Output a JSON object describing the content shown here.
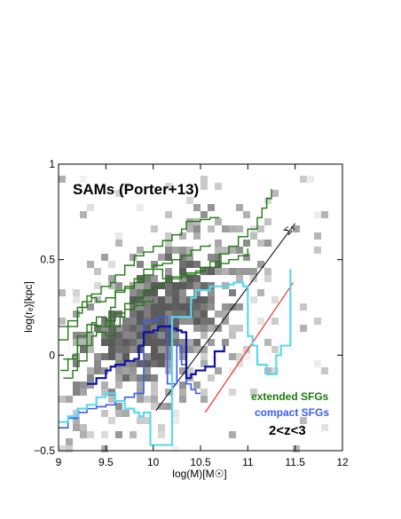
{
  "chart_data": {
    "type": "line",
    "title": "SAMs (Porter+13)",
    "xlabel": "log(M)[M☉]",
    "ylabel": "log(rₑ)[kpc]",
    "xlim": [
      9,
      12
    ],
    "ylim": [
      -0.5,
      1
    ],
    "xticks": [
      "9",
      "9.5",
      "10",
      "10.5",
      "11",
      "11.5",
      "12"
    ],
    "yticks": [
      "−0.5",
      "0",
      "0.5",
      "1"
    ],
    "grid": false,
    "legend_position": "bottom-right",
    "legend": [
      {
        "label": "extended SFGs",
        "color": "#1e7a10"
      },
      {
        "label": "compact SFGs",
        "color": "#3a5cf0"
      }
    ],
    "redshift_label": "2<z<3",
    "reference_lines": [
      {
        "label": "Σ₁",
        "color": "#000000",
        "x": [
          10.03,
          11.5
        ],
        "y": [
          -0.29,
          0.69
        ]
      },
      {
        "label": "",
        "color": "#ff0000",
        "x": [
          10.55,
          11.48
        ],
        "y": [
          -0.3,
          0.38
        ]
      }
    ],
    "series": [
      {
        "group": "extended",
        "color": "#1e7a10",
        "width": 1.4,
        "x": [
          9.0,
          9.1,
          9.2,
          9.3,
          9.35,
          9.45,
          9.55,
          9.6,
          9.7,
          9.8,
          9.9,
          10.0,
          10.1,
          10.2,
          10.3,
          10.35,
          10.45,
          10.5,
          10.6,
          10.7
        ],
        "y": [
          0.15,
          0.18,
          0.25,
          0.28,
          0.32,
          0.36,
          0.38,
          0.42,
          0.47,
          0.52,
          0.54,
          0.57,
          0.6,
          0.63,
          0.66,
          0.7,
          0.7,
          0.71,
          0.72,
          0.72
        ]
      },
      {
        "group": "extended",
        "color": "#1e7a10",
        "width": 1.4,
        "x": [
          9.0,
          9.1,
          9.2,
          9.25,
          9.3,
          9.35,
          9.4,
          9.5,
          9.6,
          9.7,
          9.8,
          9.9,
          10.0,
          10.1,
          10.2,
          10.35,
          10.5,
          10.6,
          10.7,
          10.8,
          10.9,
          11.0,
          11.1,
          11.15,
          11.2,
          11.25
        ],
        "y": [
          0.08,
          0.15,
          0.22,
          0.28,
          0.31,
          0.3,
          0.28,
          0.3,
          0.34,
          0.36,
          0.38,
          0.42,
          0.45,
          0.4,
          0.41,
          0.43,
          0.46,
          0.49,
          0.53,
          0.57,
          0.62,
          0.66,
          0.72,
          0.77,
          0.82,
          0.87
        ]
      },
      {
        "group": "extended",
        "color": "#1e7a10",
        "width": 1.4,
        "x": [
          9.02,
          9.1,
          9.2,
          9.3,
          9.4,
          9.5,
          9.55,
          9.6,
          9.7,
          9.8,
          9.9,
          10.0,
          10.1,
          10.2,
          10.3,
          10.4,
          10.5,
          10.6
        ],
        "y": [
          -0.08,
          -0.02,
          0.1,
          0.16,
          0.2,
          0.15,
          0.25,
          0.33,
          0.35,
          0.4,
          0.45,
          0.47,
          0.48,
          0.5,
          0.52,
          0.55,
          0.57,
          0.58
        ]
      },
      {
        "group": "extended",
        "color": "#1e7a10",
        "width": 1.4,
        "x": [
          9.05,
          9.15,
          9.2,
          9.3,
          9.35,
          9.4,
          9.5,
          9.6,
          9.7,
          9.8,
          9.9,
          10.0,
          10.1,
          10.2,
          10.3,
          10.45,
          10.55,
          10.7,
          10.8,
          10.9,
          11.0
        ],
        "y": [
          -0.02,
          0.0,
          0.05,
          0.12,
          0.17,
          0.15,
          0.18,
          0.22,
          0.27,
          0.3,
          0.34,
          0.36,
          0.38,
          0.4,
          0.42,
          0.44,
          0.46,
          0.48,
          0.5,
          0.52,
          0.56
        ]
      },
      {
        "group": "extended",
        "color": "#1e7a10",
        "width": 1.4,
        "x": [
          9.05,
          9.15,
          9.2,
          9.3,
          9.35,
          9.4,
          9.5,
          9.6,
          9.65,
          9.7,
          9.8,
          9.9,
          10.0
        ],
        "y": [
          -0.12,
          -0.08,
          -0.03,
          0.05,
          0.1,
          0.12,
          0.1,
          0.15,
          0.2,
          0.24,
          0.26,
          0.28,
          0.3
        ]
      },
      {
        "group": "compact",
        "color": "#3a5cf0",
        "width": 1.6,
        "x": [
          9.0,
          9.1,
          9.2,
          9.3,
          9.4,
          9.5,
          9.6,
          9.7,
          9.8,
          9.85,
          9.9,
          10.0,
          10.05,
          10.1,
          10.15,
          10.2,
          10.25,
          10.3,
          10.35,
          10.4,
          10.45,
          10.5
        ],
        "y": [
          -0.38,
          -0.33,
          -0.3,
          -0.28,
          -0.27,
          -0.26,
          -0.24,
          -0.22,
          -0.2,
          -0.2,
          0.18,
          0.18,
          0.2,
          0.2,
          -0.15,
          -0.15,
          0.05,
          -0.05,
          -0.15,
          -0.18,
          -0.2,
          -0.2
        ]
      },
      {
        "group": "compact",
        "color": "#0d10a8",
        "width": 2.2,
        "x": [
          9.3,
          9.4,
          9.5,
          9.55,
          9.6,
          9.7,
          9.8,
          9.85,
          9.9,
          10.0,
          10.05,
          10.1,
          10.2,
          10.25,
          10.3,
          10.35,
          10.4,
          10.45,
          10.55,
          10.65,
          10.75
        ],
        "y": [
          -0.15,
          -0.12,
          -0.08,
          -0.06,
          -0.05,
          -0.03,
          -0.02,
          0.05,
          0.12,
          0.13,
          0.15,
          0.15,
          0.14,
          0.13,
          0.12,
          -0.12,
          -0.1,
          -0.08,
          -0.06,
          0.02,
          0.05
        ]
      },
      {
        "group": "compact",
        "color": "#5ad8f0",
        "width": 2.2,
        "x": [
          9.0,
          9.1,
          9.2,
          9.3,
          9.4,
          9.5,
          9.55,
          9.6,
          9.7,
          9.8,
          9.85,
          9.9,
          9.95,
          9.97,
          10.0,
          10.1,
          10.15,
          10.2,
          10.3,
          10.4,
          10.45,
          10.5,
          10.6,
          10.7,
          10.8,
          10.85,
          10.9,
          10.95,
          11.0,
          11.05,
          11.1,
          11.2,
          11.3,
          11.35,
          11.45
        ],
        "y": [
          -0.35,
          -0.32,
          -0.28,
          -0.26,
          -0.22,
          -0.2,
          -0.2,
          -0.24,
          -0.28,
          -0.3,
          -0.32,
          -0.3,
          -0.3,
          -0.47,
          -0.47,
          -0.47,
          -0.47,
          0.2,
          0.2,
          0.3,
          0.34,
          0.34,
          0.36,
          0.36,
          0.37,
          0.38,
          0.38,
          0.36,
          0.1,
          0.05,
          -0.05,
          -0.1,
          0.0,
          0.05,
          0.45
        ]
      }
    ]
  }
}
